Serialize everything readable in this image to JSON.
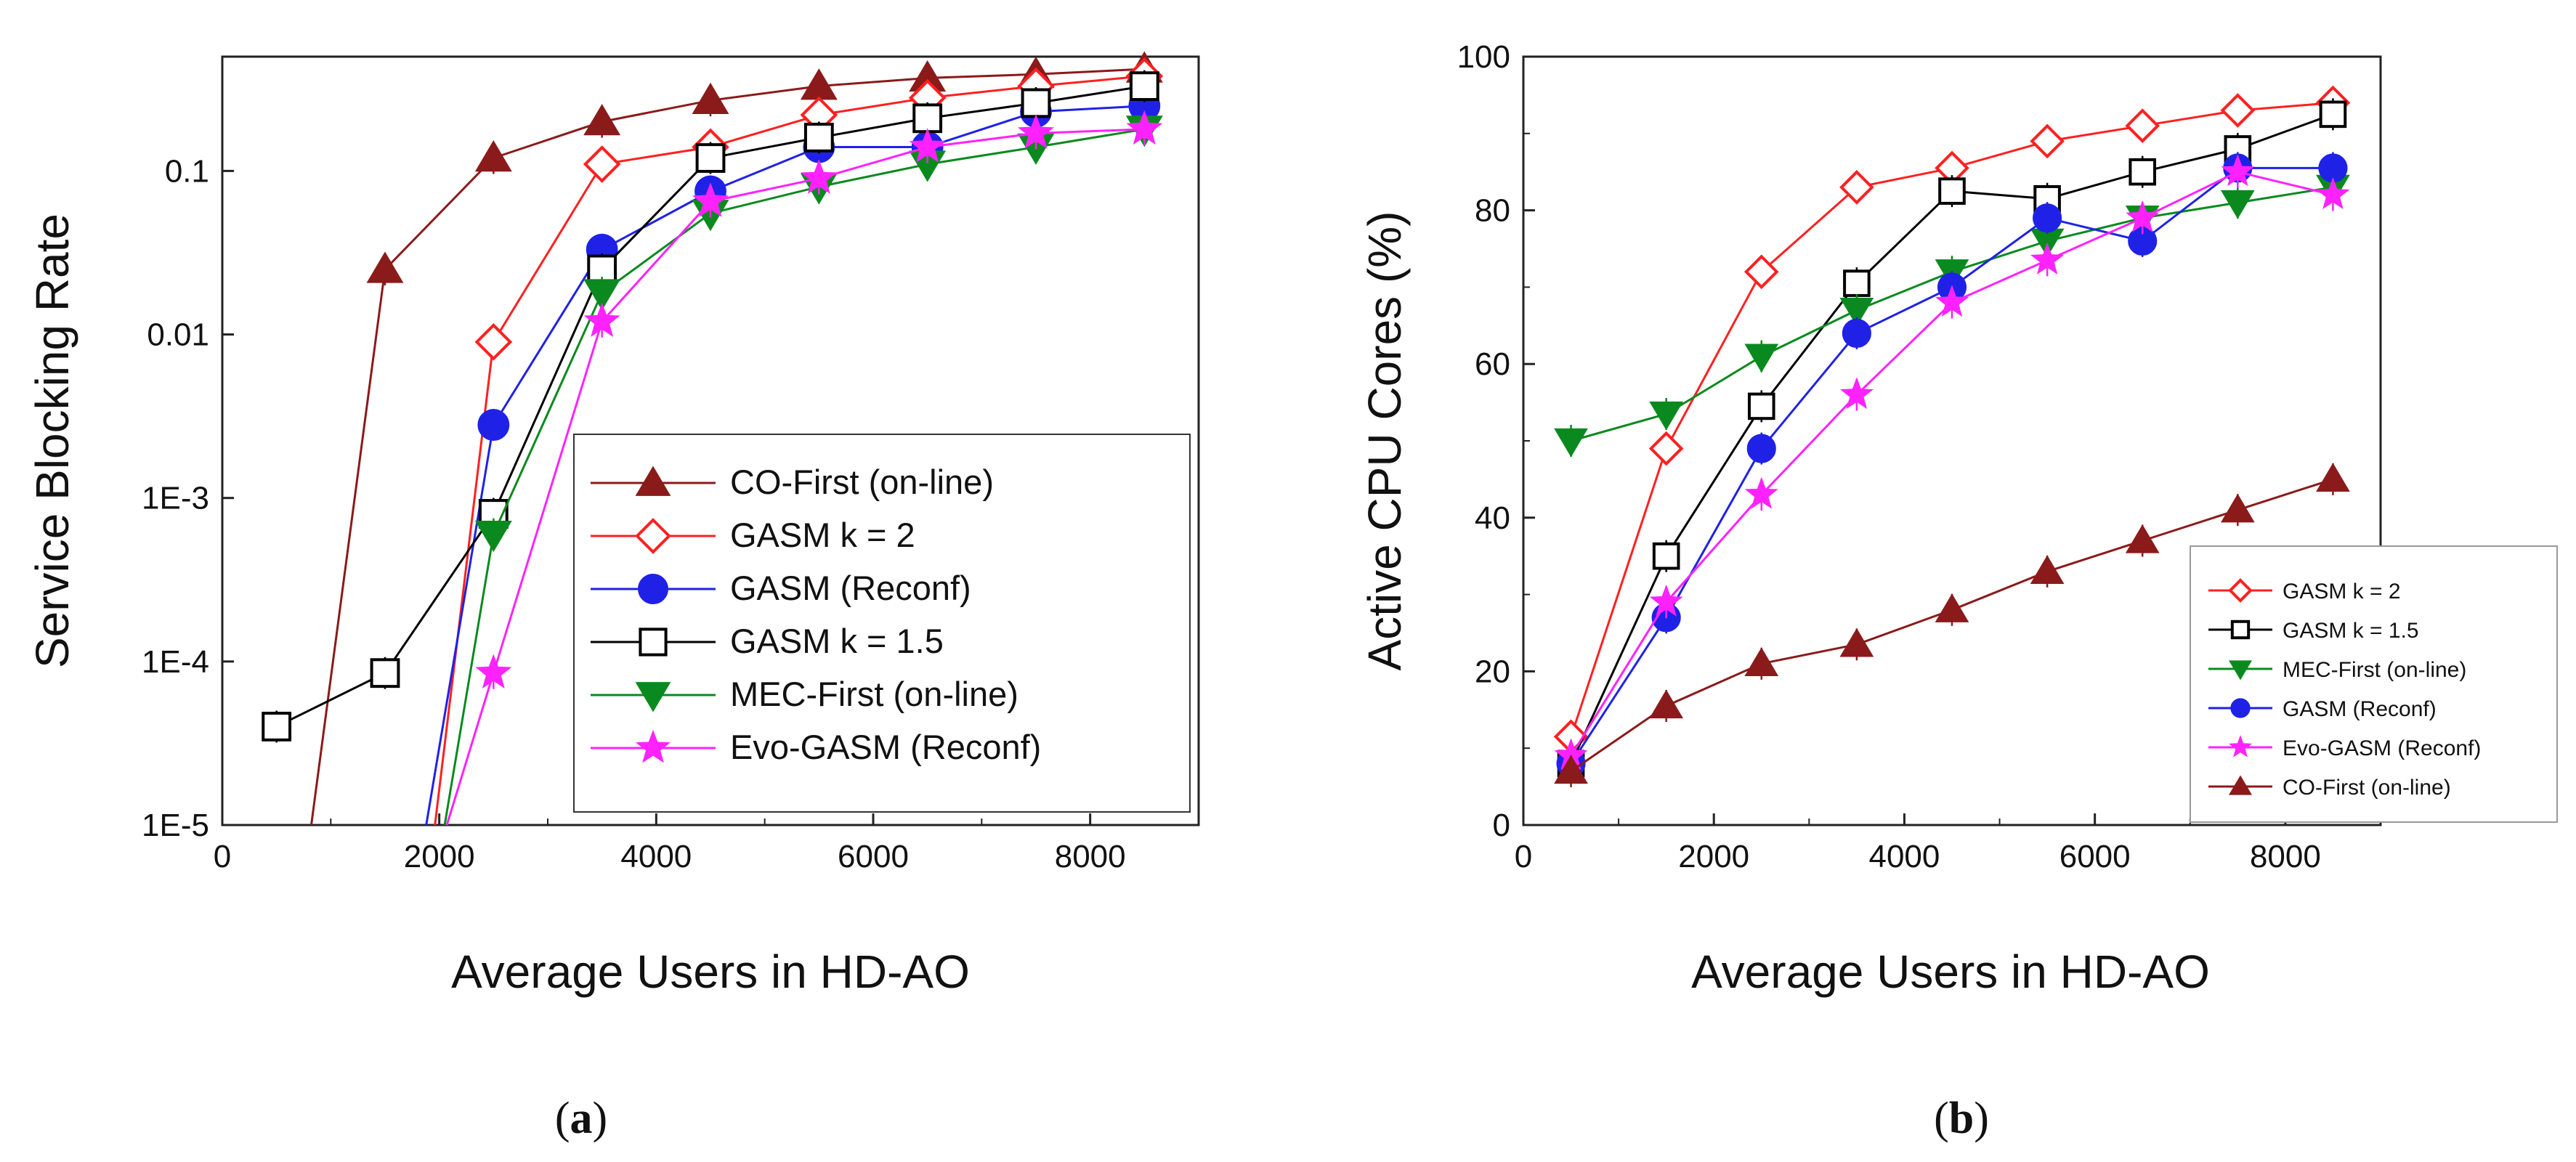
{
  "colors": {
    "co_first": "#8b1a1a",
    "gasm_k2": "#ff2020",
    "gasm_reconf": "#1f22e6",
    "gasm_k15": "#000000",
    "mec_first": "#0a8a1e",
    "evo_gasm": "#ff22ff"
  },
  "chart_data": [
    {
      "type": "line",
      "panel_label": "a",
      "xlabel": "Average Users in HD-AO",
      "ylabel": "Service Blocking Rate",
      "xlim": [
        0,
        9000
      ],
      "ylim": [
        1e-05,
        0.5
      ],
      "yscale": "log",
      "x_ticks": [
        0,
        2000,
        4000,
        6000,
        8000
      ],
      "x_tick_labels": [
        "0",
        "2000",
        "4000",
        "6000",
        "8000"
      ],
      "y_ticks": [
        1e-05,
        0.0001,
        0.001,
        0.01,
        0.1
      ],
      "y_tick_labels": [
        "1E-5",
        "1E-4",
        "1E-3",
        "0.01",
        "0.1"
      ],
      "legend_position": "bottom-right",
      "legend_order": [
        "CO-First (on-line)",
        "GASM k = 2",
        "GASM (Reconf)",
        "GASM k = 1.5",
        "MEC-First (on-line)",
        "Evo-GASM (Reconf)"
      ],
      "series": [
        {
          "name": "CO-First (on-line)",
          "color_key": "co_first",
          "marker": "triangle-up",
          "fill": true,
          "x": [
            820,
            1500,
            2500,
            3500,
            4500,
            5500,
            6500,
            7500,
            8500
          ],
          "y": [
            1e-05,
            0.025,
            0.12,
            0.2,
            0.27,
            0.33,
            0.37,
            0.39,
            0.42
          ]
        },
        {
          "name": "GASM k = 2",
          "color_key": "gasm_k2",
          "marker": "diamond",
          "fill": false,
          "x": [
            1960,
            2500,
            3500,
            4500,
            5500,
            6500,
            7500,
            8500
          ],
          "y": [
            1e-05,
            0.009,
            0.11,
            0.14,
            0.22,
            0.28,
            0.33,
            0.38
          ]
        },
        {
          "name": "GASM (Reconf)",
          "color_key": "gasm_reconf",
          "marker": "circle",
          "fill": true,
          "x": [
            1880,
            2500,
            3500,
            4500,
            5500,
            6500,
            7500,
            8500
          ],
          "y": [
            1e-05,
            0.0028,
            0.033,
            0.075,
            0.14,
            0.14,
            0.23,
            0.25
          ]
        },
        {
          "name": "GASM k = 1.5",
          "color_key": "gasm_k15",
          "marker": "square",
          "fill": false,
          "x": [
            500,
            1500,
            2500,
            3500,
            4500,
            5500,
            6500,
            7500,
            8500
          ],
          "y": [
            4e-05,
            8.5e-05,
            0.0008,
            0.025,
            0.12,
            0.16,
            0.21,
            0.26,
            0.33
          ]
        },
        {
          "name": "MEC-First (on-line)",
          "color_key": "mec_first",
          "marker": "triangle-down",
          "fill": true,
          "x": [
            2050,
            2500,
            3500,
            4500,
            5500,
            6500,
            7500,
            8500
          ],
          "y": [
            1e-05,
            0.0006,
            0.018,
            0.055,
            0.08,
            0.11,
            0.14,
            0.18
          ]
        },
        {
          "name": "Evo-GASM (Reconf)",
          "color_key": "evo_gasm",
          "marker": "star",
          "fill": true,
          "x": [
            2070,
            2500,
            3500,
            4500,
            5500,
            6500,
            7500,
            8500
          ],
          "y": [
            1e-05,
            8.5e-05,
            0.012,
            0.065,
            0.09,
            0.14,
            0.17,
            0.18
          ]
        }
      ]
    },
    {
      "type": "line",
      "panel_label": "b",
      "xlabel": "Average Users in HD-AO",
      "ylabel": "Active CPU Cores (%)",
      "xlim": [
        0,
        9000
      ],
      "ylim": [
        0,
        100
      ],
      "yscale": "linear",
      "x_ticks": [
        0,
        2000,
        4000,
        6000,
        8000
      ],
      "x_tick_labels": [
        "0",
        "2000",
        "4000",
        "6000",
        "8000"
      ],
      "y_ticks": [
        0,
        20,
        40,
        60,
        80,
        100
      ],
      "y_tick_labels": [
        "0",
        "20",
        "40",
        "60",
        "80",
        "100"
      ],
      "legend_position": "bottom-right",
      "legend_order": [
        "GASM k = 2",
        "GASM k = 1.5",
        "MEC-First (on-line)",
        "GASM (Reconf)",
        "Evo-GASM (Reconf)",
        "CO-First (on-line)"
      ],
      "series": [
        {
          "name": "GASM k = 2",
          "color_key": "gasm_k2",
          "marker": "diamond",
          "fill": false,
          "x": [
            500,
            1500,
            2500,
            3500,
            4500,
            5500,
            6500,
            7500,
            8500
          ],
          "y": [
            11.5,
            49,
            72,
            83,
            85.5,
            89,
            91,
            93,
            94
          ]
        },
        {
          "name": "GASM k = 1.5",
          "color_key": "gasm_k15",
          "marker": "square",
          "fill": false,
          "x": [
            500,
            1500,
            2500,
            3500,
            4500,
            5500,
            6500,
            7500,
            8500
          ],
          "y": [
            8,
            35,
            54.5,
            70.5,
            82.5,
            81.5,
            85,
            88,
            92.5
          ]
        },
        {
          "name": "MEC-First (on-line)",
          "color_key": "mec_first",
          "marker": "triangle-down",
          "fill": true,
          "x": [
            500,
            1500,
            2500,
            3500,
            4500,
            5500,
            6500,
            7500,
            8500
          ],
          "y": [
            50,
            53.5,
            61,
            67,
            72,
            76,
            79,
            81,
            83
          ]
        },
        {
          "name": "GASM (Reconf)",
          "color_key": "gasm_reconf",
          "marker": "circle",
          "fill": true,
          "x": [
            500,
            1500,
            2500,
            3500,
            4500,
            5500,
            6500,
            7500,
            8500
          ],
          "y": [
            8,
            27,
            49,
            64,
            70,
            79,
            76,
            85.5,
            85.5
          ]
        },
        {
          "name": "Evo-GASM (Reconf)",
          "color_key": "evo_gasm",
          "marker": "star",
          "fill": true,
          "x": [
            500,
            1500,
            2500,
            3500,
            4500,
            5500,
            6500,
            7500,
            8500
          ],
          "y": [
            9,
            29,
            43,
            56,
            68,
            73.5,
            79,
            85,
            82
          ]
        },
        {
          "name": "CO-First (on-line)",
          "color_key": "co_first",
          "marker": "triangle-up",
          "fill": true,
          "x": [
            500,
            1500,
            2500,
            3500,
            4500,
            5500,
            6500,
            7500,
            8500
          ],
          "y": [
            7,
            15.5,
            21,
            23.5,
            28,
            33,
            37,
            41,
            45
          ]
        }
      ]
    }
  ]
}
